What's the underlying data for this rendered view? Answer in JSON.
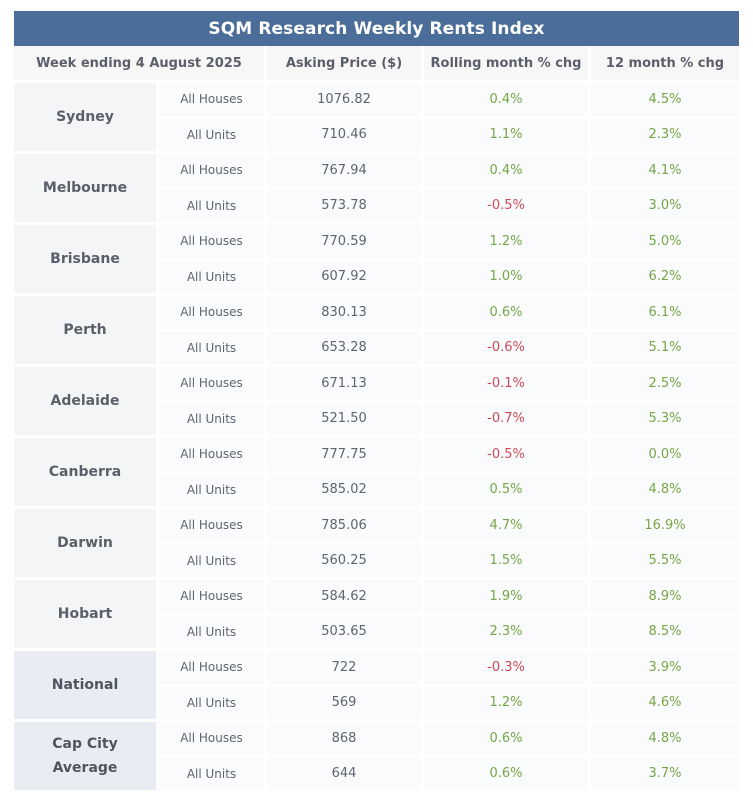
{
  "title": "SQM Research Weekly Rents Index",
  "headers": {
    "week": "Week ending 4 August 2025",
    "price": "Asking Price ($)",
    "rolling": "Rolling month % chg",
    "yearly": "12 month % chg"
  },
  "colors": {
    "header_bg": "#4a6d99",
    "positive": "#77a646",
    "negative": "#cc4b57"
  },
  "cities": [
    {
      "name": "Sydney",
      "rows": [
        {
          "type": "All Houses",
          "price": "1076.82",
          "rolling": "0.4%",
          "yearly": "4.5%"
        },
        {
          "type": "All Units",
          "price": "710.46",
          "rolling": "1.1%",
          "yearly": "2.3%"
        }
      ]
    },
    {
      "name": "Melbourne",
      "rows": [
        {
          "type": "All Houses",
          "price": "767.94",
          "rolling": "0.4%",
          "yearly": "4.1%"
        },
        {
          "type": "All Units",
          "price": "573.78",
          "rolling": "-0.5%",
          "yearly": "3.0%"
        }
      ]
    },
    {
      "name": "Brisbane",
      "rows": [
        {
          "type": "All Houses",
          "price": "770.59",
          "rolling": "1.2%",
          "yearly": "5.0%"
        },
        {
          "type": "All Units",
          "price": "607.92",
          "rolling": "1.0%",
          "yearly": "6.2%"
        }
      ]
    },
    {
      "name": "Perth",
      "rows": [
        {
          "type": "All Houses",
          "price": "830.13",
          "rolling": "0.6%",
          "yearly": "6.1%"
        },
        {
          "type": "All Units",
          "price": "653.28",
          "rolling": "-0.6%",
          "yearly": "5.1%"
        }
      ]
    },
    {
      "name": "Adelaide",
      "rows": [
        {
          "type": "All Houses",
          "price": "671.13",
          "rolling": "-0.1%",
          "yearly": "2.5%"
        },
        {
          "type": "All Units",
          "price": "521.50",
          "rolling": "-0.7%",
          "yearly": "5.3%"
        }
      ]
    },
    {
      "name": "Canberra",
      "rows": [
        {
          "type": "All Houses",
          "price": "777.75",
          "rolling": "-0.5%",
          "yearly": "0.0%"
        },
        {
          "type": "All Units",
          "price": "585.02",
          "rolling": "0.5%",
          "yearly": "4.8%"
        }
      ]
    },
    {
      "name": "Darwin",
      "rows": [
        {
          "type": "All Houses",
          "price": "785.06",
          "rolling": "4.7%",
          "yearly": "16.9%"
        },
        {
          "type": "All Units",
          "price": "560.25",
          "rolling": "1.5%",
          "yearly": "5.5%"
        }
      ]
    },
    {
      "name": "Hobart",
      "rows": [
        {
          "type": "All Houses",
          "price": "584.62",
          "rolling": "1.9%",
          "yearly": "8.9%"
        },
        {
          "type": "All Units",
          "price": "503.65",
          "rolling": "2.3%",
          "yearly": "8.5%"
        }
      ]
    },
    {
      "name": "National",
      "summary": true,
      "rows": [
        {
          "type": "All Houses",
          "price": "722",
          "rolling": "-0.3%",
          "yearly": "3.9%"
        },
        {
          "type": "All Units",
          "price": "569",
          "rolling": "1.2%",
          "yearly": "4.6%"
        }
      ]
    },
    {
      "name": "Cap City\nAverage",
      "summary": true,
      "rows": [
        {
          "type": "All Houses",
          "price": "868",
          "rolling": "0.6%",
          "yearly": "4.8%"
        },
        {
          "type": "All Units",
          "price": "644",
          "rolling": "0.6%",
          "yearly": "3.7%"
        }
      ]
    }
  ]
}
